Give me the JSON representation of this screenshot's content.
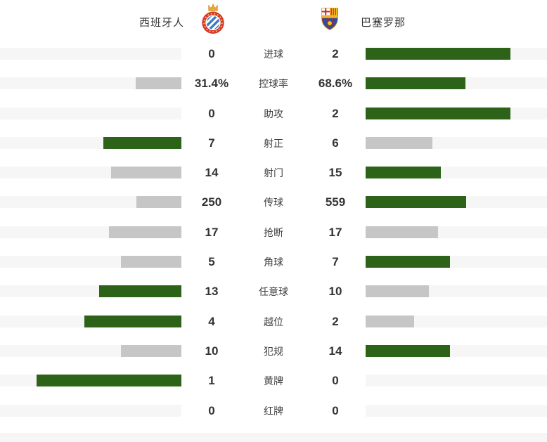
{
  "header": {
    "home_team": "西班牙人",
    "away_team": "巴塞罗那"
  },
  "colors": {
    "bar_win_green": "#2d6319",
    "bar_lose_gray": "#c6c6c6",
    "bar_track": "#f6f6f6",
    "value_text": "#333333",
    "label_text": "#404040"
  },
  "chart_data": {
    "type": "bar",
    "layout": "bilateral-horizontal-comparison",
    "legend_position": "top",
    "categories": [
      "进球",
      "控球率",
      "助攻",
      "射正",
      "射门",
      "传球",
      "抢断",
      "角球",
      "任意球",
      "越位",
      "犯规",
      "黄牌",
      "红牌"
    ],
    "series": [
      {
        "name": "西班牙人",
        "values": [
          "0",
          "31.4%",
          "0",
          "7",
          "14",
          "250",
          "17",
          "5",
          "13",
          "4",
          "10",
          "1",
          "0"
        ]
      },
      {
        "name": "巴塞罗那",
        "values": [
          "2",
          "68.6%",
          "2",
          "6",
          "15",
          "559",
          "17",
          "7",
          "10",
          "2",
          "14",
          "0",
          "0"
        ]
      }
    ],
    "bar_scale": "fill width = 80% of half-track × value/(home+away); higher value green, lower or tied value gray, zero value no fill"
  }
}
